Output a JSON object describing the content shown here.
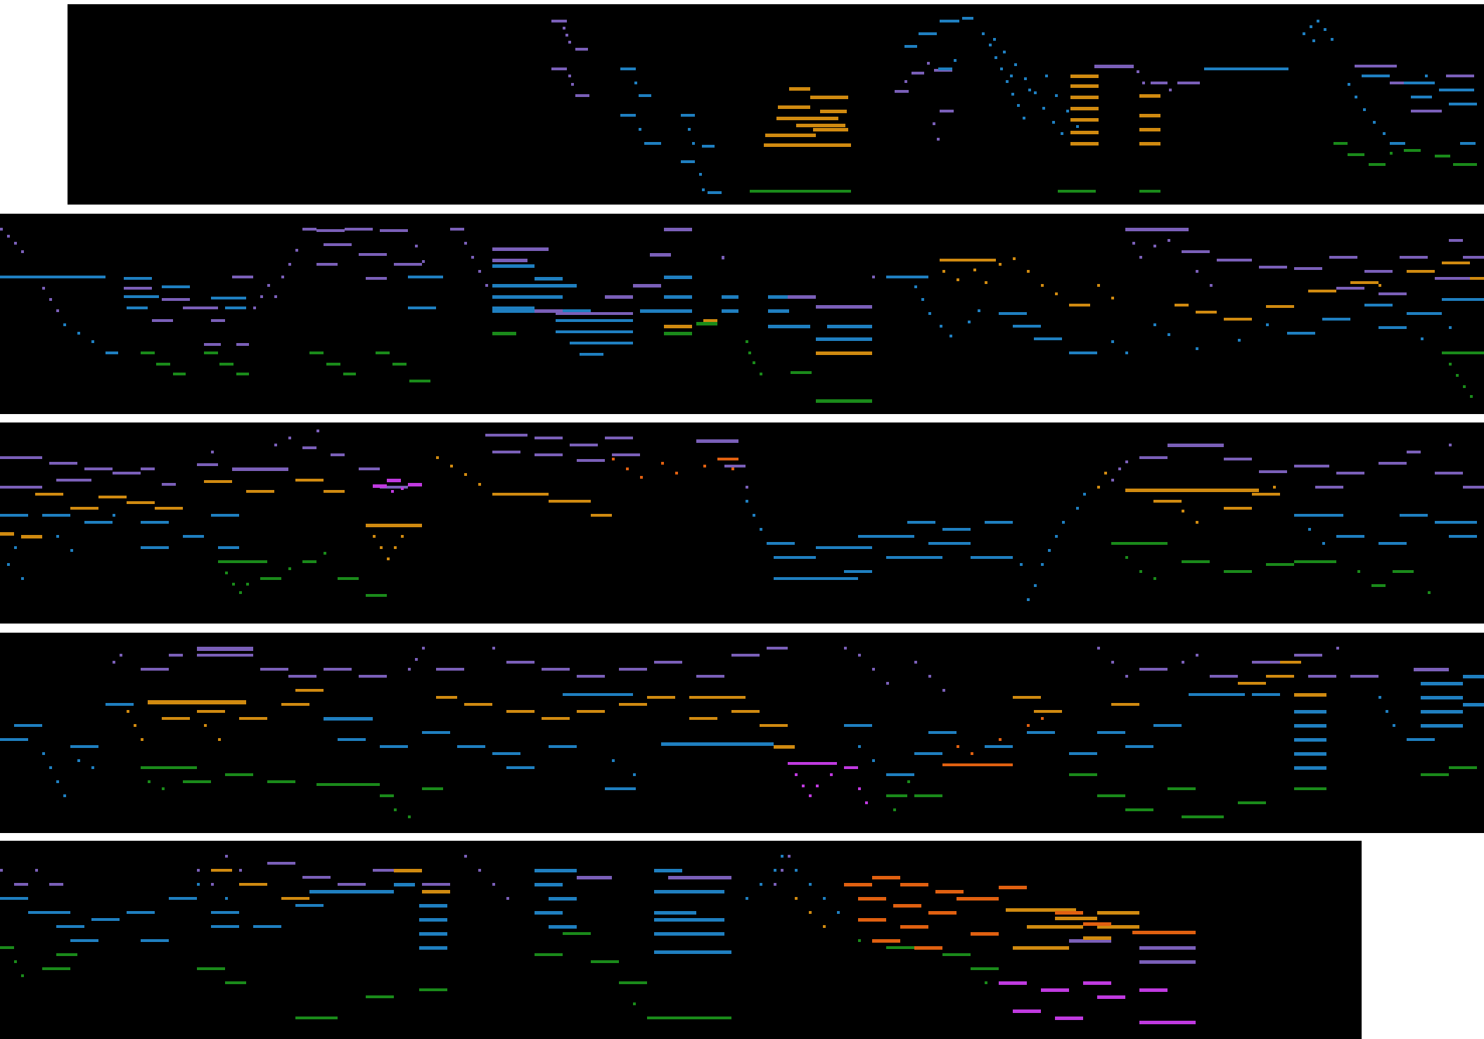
{
  "visualization": {
    "kind": "piano-roll",
    "background": "#000000",
    "voices": [
      {
        "id": "voice-purple",
        "color": "#7a5fb8"
      },
      {
        "id": "voice-blue",
        "color": "#1f7fc0"
      },
      {
        "id": "voice-gold",
        "color": "#d08a10"
      },
      {
        "id": "voice-green",
        "color": "#1a8a1a"
      },
      {
        "id": "voice-magenta",
        "color": "#c03ae0"
      },
      {
        "id": "voice-orange",
        "color": "#e06010"
      }
    ],
    "strips": [
      {
        "id": "strip-1",
        "name": "piano-roll-strip-1"
      },
      {
        "id": "strip-2",
        "name": "piano-roll-strip-2"
      },
      {
        "id": "strip-3",
        "name": "piano-roll-strip-3"
      },
      {
        "id": "strip-4",
        "name": "piano-roll-strip-4"
      },
      {
        "id": "strip-5",
        "name": "piano-roll-strip-5"
      }
    ]
  }
}
